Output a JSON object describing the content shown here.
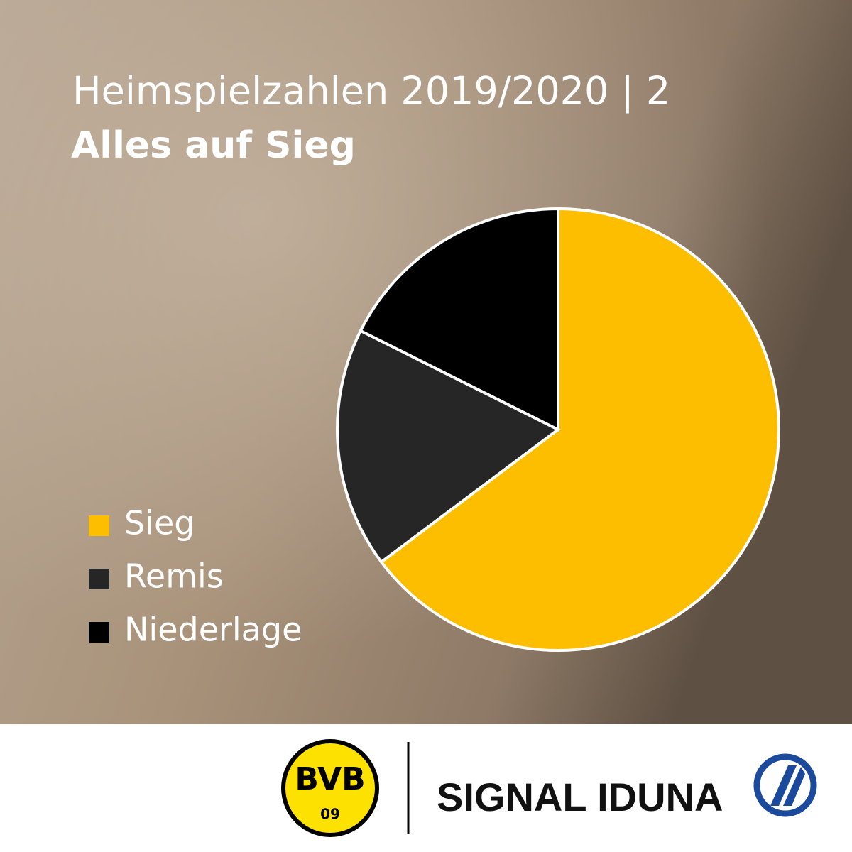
{
  "chart_data": {
    "type": "pie",
    "title": "Heimspielzahlen 2019/2020 | 2",
    "subtitle": "Alles auf Sieg",
    "categories": [
      "Sieg",
      "Remis",
      "Niederlage"
    ],
    "values": [
      64.7,
      17.6,
      17.6
    ],
    "colors": [
      "#fdbe00",
      "#262626",
      "#000000"
    ]
  },
  "footer": {
    "club_badge": {
      "letters": "BVB",
      "year": "09"
    },
    "sponsor": "SIGNAL IDUNA"
  }
}
